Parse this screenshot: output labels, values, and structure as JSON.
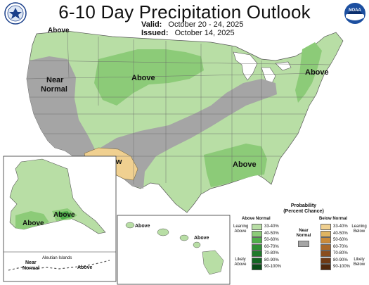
{
  "header": {
    "title": "6-10 Day Precipitation Outlook",
    "valid_label": "Valid:",
    "valid_value": "October 20 - 24, 2025",
    "issued_label": "Issued:",
    "issued_value": "October 14, 2025"
  },
  "logos": {
    "left": "commerce-seal-icon",
    "right": "noaa-logo-icon"
  },
  "colors": {
    "above_light": "#b8dea5",
    "above_mid": "#8ccb78",
    "above_dark": "#4fae4a",
    "near_normal": "#a5a5a5",
    "below_light": "#f0d090",
    "water": "#ffffff",
    "outline": "#555555"
  },
  "map_labels": {
    "conus_above_north": "Above",
    "conus_above_ne": "Above",
    "conus_above_se": "Above",
    "conus_near_normal_line1": "Near",
    "conus_near_normal_line2": "Normal",
    "conus_below": "Below",
    "conus_above_nw": "Above",
    "alaska_above_left": "Above",
    "alaska_above_right": "Above",
    "hawaii_above_left": "Above",
    "hawaii_above_right": "Above",
    "aleutian_title": "Aleutian Islands",
    "aleutian_near_line1": "Near",
    "aleutian_near_line2": "Normal",
    "aleutian_above": "Above"
  },
  "legend": {
    "title_line1": "Probability",
    "title_line2": "(Percent Chance)",
    "above_header": "Above Normal",
    "below_header": "Below Normal",
    "near_line1": "Near",
    "near_line2": "Normal",
    "leaning_above_1": "Leaning",
    "leaning_above_2": "Above",
    "likely_above_1": "Likely",
    "likely_above_2": "Above",
    "leaning_below_1": "Leaning",
    "leaning_below_2": "Below",
    "likely_below_1": "Likely",
    "likely_below_2": "Below",
    "above_bins": [
      {
        "range": "33-40%",
        "color": "#b8dea5"
      },
      {
        "range": "40-50%",
        "color": "#8ccb78"
      },
      {
        "range": "50-60%",
        "color": "#4fae4a"
      },
      {
        "range": "60-70%",
        "color": "#2f8f35"
      },
      {
        "range": "70-80%",
        "color": "#1f7a2a"
      },
      {
        "range": "80-90%",
        "color": "#136522"
      },
      {
        "range": "90-100%",
        "color": "#0a4d18"
      }
    ],
    "below_bins": [
      {
        "range": "33-40%",
        "color": "#f0d090"
      },
      {
        "range": "40-50%",
        "color": "#e0b460"
      },
      {
        "range": "50-60%",
        "color": "#c98a3a"
      },
      {
        "range": "60-70%",
        "color": "#a9682a"
      },
      {
        "range": "70-80%",
        "color": "#8a4d1e"
      },
      {
        "range": "80-90%",
        "color": "#6f3a15"
      },
      {
        "range": "90-100%",
        "color": "#52280c"
      }
    ],
    "near_color": "#a5a5a5"
  }
}
